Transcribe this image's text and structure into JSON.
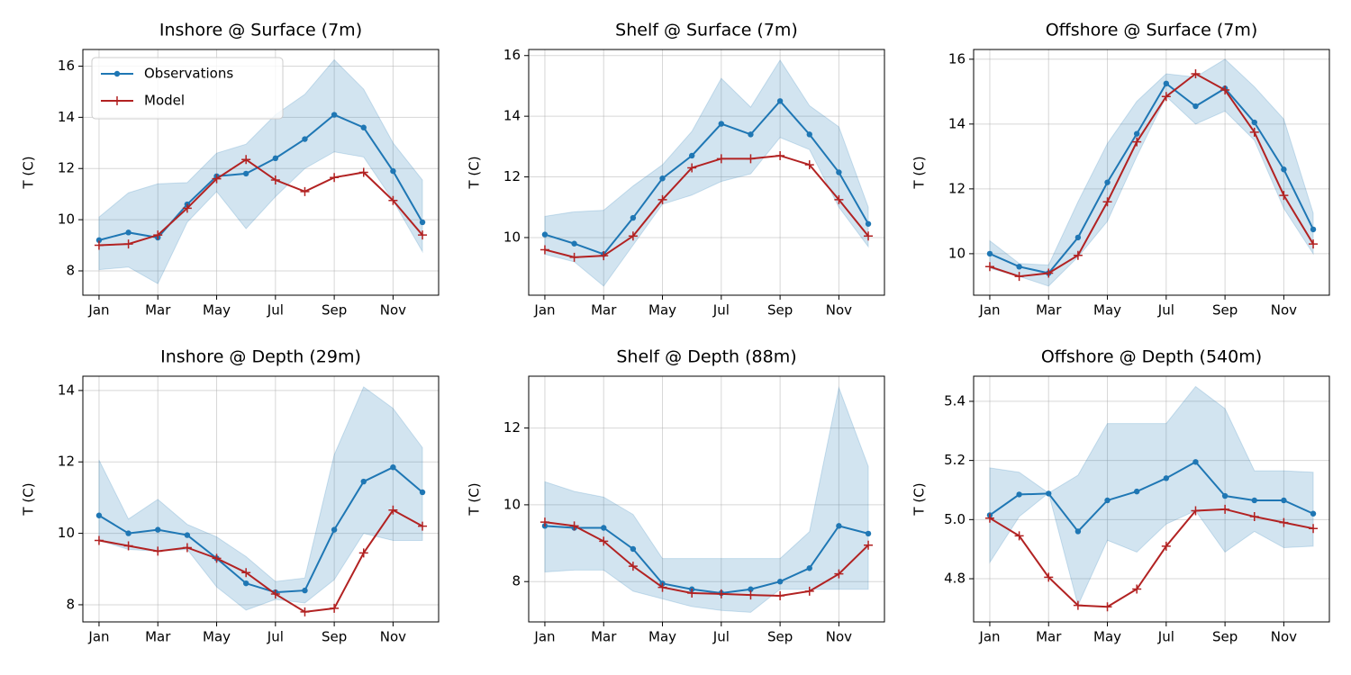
{
  "chart_data": [
    {
      "type": "line",
      "title": "Inshore @ Surface (7m)",
      "y_label": "T (C)",
      "categories": [
        "Jan",
        null,
        "Mar",
        null,
        "May",
        null,
        "Jul",
        null,
        "Sep",
        null,
        "Nov",
        null
      ],
      "ylim": [
        7.05,
        16.65
      ],
      "yticks": [
        8,
        10,
        12,
        14,
        16
      ],
      "grid": true,
      "legend": "upper left",
      "series": [
        {
          "name": "Observations",
          "color": "#1f77b4",
          "marker": "dot",
          "values": [
            9.2,
            9.5,
            9.3,
            10.6,
            11.7,
            11.8,
            12.4,
            13.15,
            14.1,
            13.6,
            11.9,
            9.9
          ],
          "range_high": [
            10.1,
            11.05,
            11.4,
            11.45,
            12.6,
            12.95,
            14.1,
            14.9,
            16.25,
            15.1,
            13.0,
            11.55
          ],
          "range_low": [
            8.05,
            8.15,
            7.5,
            9.9,
            11.1,
            9.65,
            10.9,
            12.0,
            12.65,
            12.45,
            10.75,
            8.75
          ]
        },
        {
          "name": "Model",
          "color": "#b22222",
          "marker": "plus",
          "values": [
            9.0,
            9.05,
            9.4,
            10.45,
            11.6,
            12.35,
            11.55,
            11.1,
            11.65,
            11.85,
            10.75,
            9.4
          ]
        }
      ]
    },
    {
      "type": "line",
      "title": "Shelf @ Surface (7m)",
      "y_label": "T (C)",
      "categories": [
        "Jan",
        null,
        "Mar",
        null,
        "May",
        null,
        "Jul",
        null,
        "Sep",
        null,
        "Nov",
        null
      ],
      "ylim": [
        8.1,
        16.2
      ],
      "yticks": [
        10,
        12,
        14,
        16
      ],
      "grid": true,
      "series": [
        {
          "color": "#1f77b4",
          "marker": "dot",
          "values": [
            10.1,
            9.8,
            9.45,
            10.65,
            11.95,
            12.7,
            13.75,
            13.4,
            14.5,
            13.4,
            12.15,
            10.45
          ],
          "range_high": [
            10.7,
            10.85,
            10.9,
            11.7,
            12.4,
            13.5,
            15.25,
            14.3,
            15.85,
            14.35,
            13.65,
            11.0
          ],
          "range_low": [
            9.45,
            9.2,
            8.4,
            9.75,
            11.1,
            11.4,
            11.85,
            12.1,
            13.3,
            12.9,
            11.0,
            9.7
          ]
        },
        {
          "color": "#b22222",
          "marker": "plus",
          "values": [
            9.6,
            9.35,
            9.4,
            10.05,
            11.25,
            12.3,
            12.6,
            12.6,
            12.7,
            12.4,
            11.25,
            10.05
          ]
        }
      ]
    },
    {
      "type": "line",
      "title": "Offshore @ Surface (7m)",
      "y_label": "T (C)",
      "categories": [
        "Jan",
        null,
        "Mar",
        null,
        "May",
        null,
        "Jul",
        null,
        "Sep",
        null,
        "Nov",
        null
      ],
      "ylim": [
        8.72,
        16.3
      ],
      "yticks": [
        10,
        12,
        14,
        16
      ],
      "grid": true,
      "series": [
        {
          "color": "#1f77b4",
          "marker": "dot",
          "values": [
            10.0,
            9.6,
            9.4,
            10.5,
            12.2,
            13.7,
            15.25,
            14.55,
            15.1,
            14.05,
            12.6,
            10.75
          ],
          "range_high": [
            10.4,
            9.7,
            9.65,
            11.6,
            13.4,
            14.7,
            15.55,
            15.45,
            16.0,
            15.15,
            14.15,
            11.25
          ],
          "range_low": [
            9.55,
            9.3,
            9.0,
            9.9,
            11.0,
            13.0,
            14.85,
            14.0,
            14.4,
            13.5,
            11.4,
            10.0
          ]
        },
        {
          "color": "#b22222",
          "marker": "plus",
          "values": [
            9.6,
            9.3,
            9.4,
            9.95,
            11.6,
            13.45,
            14.85,
            15.55,
            15.05,
            13.75,
            11.8,
            10.3
          ]
        }
      ]
    },
    {
      "type": "line",
      "title": "Inshore @ Depth (29m)",
      "y_label": "T (C)",
      "categories": [
        "Jan",
        null,
        "Mar",
        null,
        "May",
        null,
        "Jul",
        null,
        "Sep",
        null,
        "Nov",
        null
      ],
      "ylim": [
        7.52,
        14.4
      ],
      "yticks": [
        8,
        10,
        12,
        14
      ],
      "grid": true,
      "series": [
        {
          "color": "#1f77b4",
          "marker": "dot",
          "values": [
            10.5,
            10.0,
            10.1,
            9.95,
            9.3,
            8.6,
            8.35,
            8.4,
            10.1,
            11.45,
            11.85,
            11.15
          ],
          "range_high": [
            12.05,
            10.4,
            10.95,
            10.25,
            9.9,
            9.35,
            8.65,
            8.75,
            12.2,
            14.1,
            13.5,
            12.4
          ],
          "range_low": [
            9.8,
            9.55,
            9.5,
            9.55,
            8.5,
            7.85,
            8.15,
            8.05,
            8.7,
            10.0,
            9.8,
            9.8
          ]
        },
        {
          "color": "#b22222",
          "marker": "plus",
          "values": [
            9.8,
            9.65,
            9.5,
            9.6,
            9.3,
            8.9,
            8.3,
            7.8,
            7.9,
            9.45,
            10.65,
            10.2
          ]
        }
      ]
    },
    {
      "type": "line",
      "title": "Shelf @ Depth (88m)",
      "y_label": "T (C)",
      "categories": [
        "Jan",
        null,
        "Mar",
        null,
        "May",
        null,
        "Jul",
        null,
        "Sep",
        null,
        "Nov",
        null
      ],
      "ylim": [
        6.95,
        13.35
      ],
      "yticks": [
        8,
        10,
        12
      ],
      "grid": true,
      "series": [
        {
          "color": "#1f77b4",
          "marker": "dot",
          "values": [
            9.45,
            9.4,
            9.4,
            8.85,
            7.95,
            7.8,
            7.7,
            7.8,
            8.0,
            8.35,
            9.45,
            9.25
          ],
          "range_high": [
            10.6,
            10.35,
            10.2,
            9.75,
            8.6,
            8.6,
            8.6,
            8.6,
            8.6,
            9.3,
            13.05,
            11.0
          ],
          "range_low": [
            8.25,
            8.3,
            8.3,
            7.75,
            7.55,
            7.35,
            7.25,
            7.2,
            7.8,
            7.8,
            7.8,
            7.8
          ]
        },
        {
          "color": "#b22222",
          "marker": "plus",
          "values": [
            9.55,
            9.45,
            9.05,
            8.4,
            7.85,
            7.7,
            7.68,
            7.65,
            7.63,
            7.75,
            8.2,
            8.95
          ]
        }
      ]
    },
    {
      "type": "line",
      "title": "Offshore @ Depth (540m)",
      "y_label": "T (C)",
      "categories": [
        "Jan",
        null,
        "Mar",
        null,
        "May",
        null,
        "Jul",
        null,
        "Sep",
        null,
        "Nov",
        null
      ],
      "ylim": [
        4.654,
        5.485
      ],
      "yticks": [
        4.8,
        {
          "value": 5,
          "label": "5.0"
        },
        5.2,
        5.4
      ],
      "grid": true,
      "series": [
        {
          "color": "#1f77b4",
          "marker": "dot",
          "values": [
            5.015,
            5.085,
            5.088,
            4.96,
            5.065,
            5.095,
            5.14,
            5.195,
            5.08,
            5.065,
            5.065,
            5.02
          ],
          "range_high": [
            5.175,
            5.16,
            5.09,
            5.15,
            5.325,
            5.325,
            5.325,
            5.45,
            5.375,
            5.165,
            5.165,
            5.16
          ],
          "range_low": [
            4.855,
            5.01,
            5.09,
            4.71,
            4.93,
            4.89,
            4.985,
            5.03,
            4.89,
            4.96,
            4.905,
            4.91
          ]
        },
        {
          "color": "#b22222",
          "marker": "plus",
          "values": [
            5.005,
            4.945,
            4.805,
            4.71,
            4.705,
            4.765,
            4.91,
            5.03,
            5.035,
            5.01,
            4.99,
            4.97
          ]
        }
      ]
    }
  ]
}
